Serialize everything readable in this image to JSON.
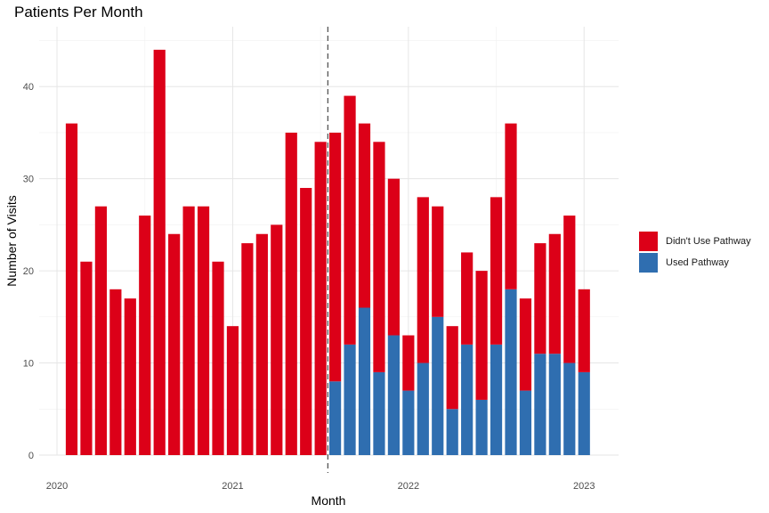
{
  "chart_data": {
    "type": "bar",
    "stacked": true,
    "title": "Patients Per Month",
    "xlabel": "Month",
    "ylabel": "Number of Visits",
    "ylim": [
      0,
      46.5
    ],
    "yticks": [
      0,
      10,
      20,
      30,
      40
    ],
    "xticks": [
      "2020",
      "2021",
      "2022",
      "2023"
    ],
    "grid": true,
    "legend_position": "right",
    "vline": {
      "between": [
        "2021-07",
        "2021-08"
      ],
      "style": "dashed"
    },
    "categories": [
      "2020-02",
      "2020-03",
      "2020-04",
      "2020-05",
      "2020-06",
      "2020-07",
      "2020-08",
      "2020-09",
      "2020-10",
      "2020-11",
      "2020-12",
      "2021-01",
      "2021-02",
      "2021-03",
      "2021-04",
      "2021-05",
      "2021-06",
      "2021-07",
      "2021-08",
      "2021-09",
      "2021-10",
      "2021-11",
      "2021-12",
      "2022-01",
      "2022-02",
      "2022-03",
      "2022-04",
      "2022-05",
      "2022-06",
      "2022-07",
      "2022-08",
      "2022-09",
      "2022-10",
      "2022-11",
      "2022-12",
      "2023-01"
    ],
    "series": [
      {
        "name": "Used Pathway",
        "color": "#2f6eb0",
        "values": [
          0,
          0,
          0,
          0,
          0,
          0,
          0,
          0,
          0,
          0,
          0,
          0,
          0,
          0,
          0,
          0,
          0,
          0,
          8,
          12,
          16,
          9,
          13,
          7,
          10,
          15,
          5,
          12,
          6,
          12,
          18,
          7,
          11,
          11,
          10,
          9
        ]
      },
      {
        "name": "Didn't Use Pathway",
        "color": "#dc0018",
        "values": [
          36,
          21,
          27,
          18,
          17,
          26,
          44,
          24,
          27,
          27,
          21,
          14,
          23,
          24,
          25,
          35,
          29,
          34,
          27,
          27,
          20,
          25,
          17,
          6,
          18,
          12,
          9,
          10,
          14,
          16,
          18,
          10,
          12,
          13,
          16,
          9
        ]
      }
    ]
  },
  "legend": {
    "items": [
      {
        "label": "Didn't Use Pathway",
        "color": "#dc0018"
      },
      {
        "label": "Used Pathway",
        "color": "#2f6eb0"
      }
    ]
  }
}
